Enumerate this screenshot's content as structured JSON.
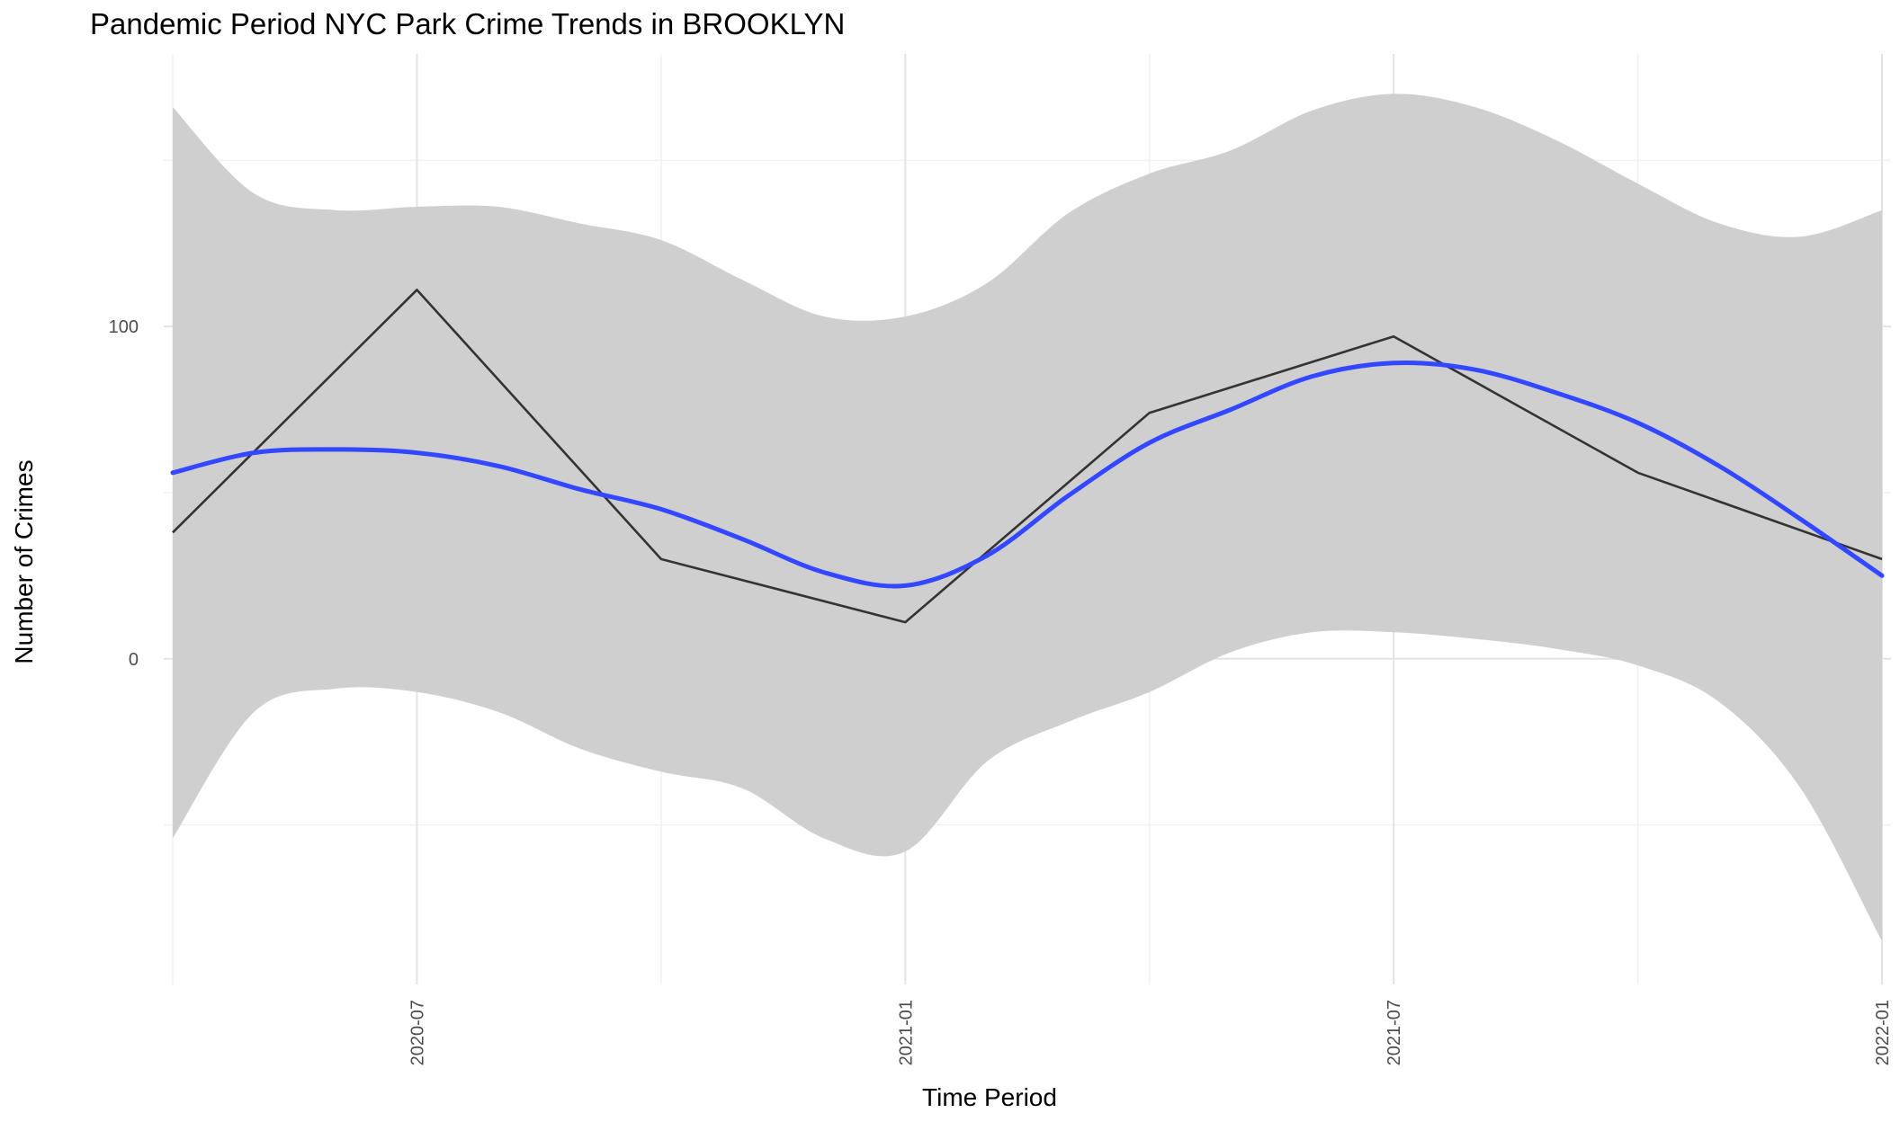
{
  "chart_data": {
    "type": "line",
    "title": "Pandemic Period NYC Park Crime Trends in BROOKLYN",
    "xlabel": "Time Period",
    "ylabel": "Number of Crimes",
    "x_tick_labels": [
      "2020-07",
      "2021-01",
      "2021-07",
      "2022-01"
    ],
    "y_tick_labels": [
      "0",
      "100"
    ],
    "x_domain": [
      "2020-04",
      "2022-01"
    ],
    "ylim": [
      -98,
      182
    ],
    "grid": true,
    "legend": "none",
    "x": [
      "2020-04",
      "2020-07",
      "2020-10",
      "2021-01",
      "2021-04",
      "2021-07",
      "2021-10",
      "2022-01"
    ],
    "series": [
      {
        "values": [
          38,
          111,
          30,
          11,
          74,
          97,
          56,
          30
        ],
        "color": "#333333"
      }
    ],
    "smooth": {
      "color": "#3347ff",
      "fill": "#cfcfcf",
      "x": [
        "2020-04",
        "2020-05",
        "2020-06",
        "2020-07",
        "2020-08",
        "2020-09",
        "2020-10",
        "2020-11",
        "2020-12",
        "2021-01",
        "2021-02",
        "2021-03",
        "2021-04",
        "2021-05",
        "2021-06",
        "2021-07",
        "2021-08",
        "2021-09",
        "2021-10",
        "2021-11",
        "2021-12",
        "2022-01"
      ],
      "fit": [
        56,
        62,
        63,
        62,
        58,
        51,
        45,
        36,
        26,
        22,
        31,
        49,
        65,
        75,
        85,
        89,
        87,
        80,
        71,
        58,
        42,
        25
      ],
      "upper": [
        166,
        140,
        135,
        136,
        136,
        131,
        126,
        114,
        103,
        103,
        113,
        134,
        146,
        153,
        165,
        170,
        166,
        156,
        143,
        131,
        127,
        135
      ],
      "lower": [
        -54,
        -16,
        -9,
        -10,
        -16,
        -27,
        -34,
        -39,
        -54,
        -58,
        -31,
        -19,
        -10,
        2,
        8,
        8,
        6,
        3,
        -2,
        -13,
        -39,
        -85
      ]
    }
  }
}
